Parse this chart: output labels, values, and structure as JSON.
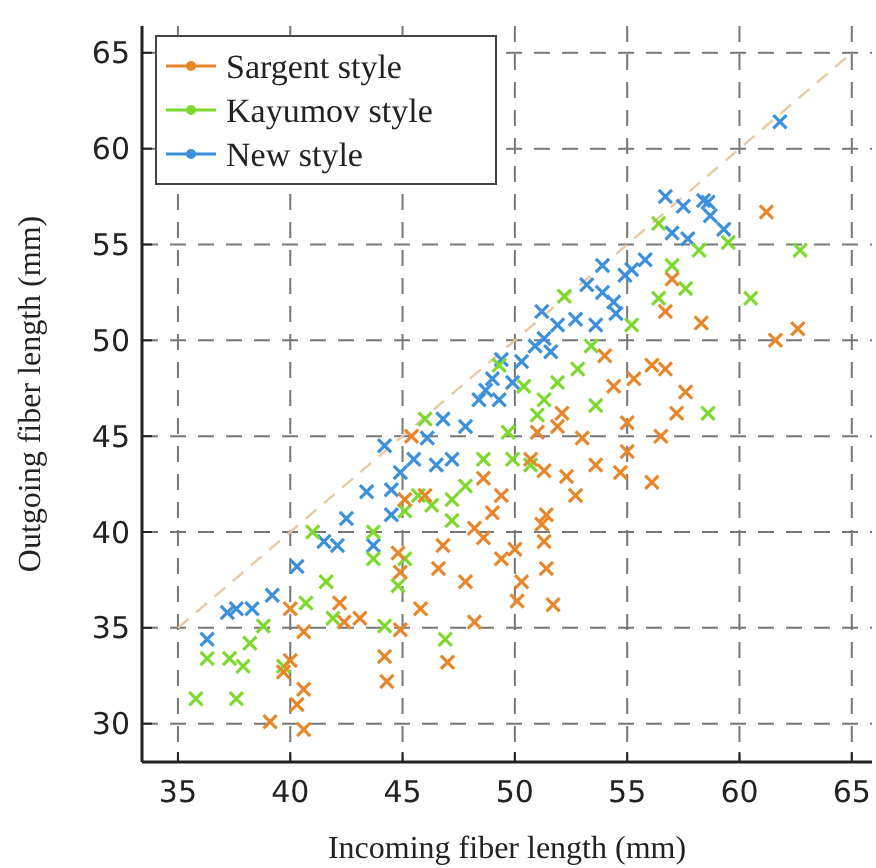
{
  "chart_data": {
    "type": "scatter",
    "xlabel": "Incoming fiber length (mm)",
    "ylabel": "Outgoing fiber length (mm)",
    "xlim": [
      33.4,
      65.9
    ],
    "ylim": [
      28,
      66.4
    ],
    "xticks": [
      35,
      40,
      45,
      50,
      55,
      60,
      65
    ],
    "yticks": [
      30,
      35,
      40,
      45,
      50,
      55,
      60,
      65
    ],
    "grid": true,
    "legend": "top left",
    "marker": "cross",
    "series": [
      {
        "name": "Sargent style",
        "color": "#e8862a",
        "x": [
          61.2,
          62.6,
          61.6,
          58.3,
          56.7,
          57.0,
          56.1,
          56.7,
          57.6,
          57.2,
          56.5,
          56.1,
          55.0,
          55.0,
          54.7,
          55.3,
          54.0,
          54.4,
          53.6,
          53.0,
          52.1,
          52.7,
          51.9,
          52.3,
          51.3,
          51.0,
          50.7,
          51.4,
          51.2,
          51.3,
          51.4,
          51.7,
          50.3,
          50.0,
          50.1,
          49.4,
          49.0,
          48.6,
          48.2,
          48.6,
          49.4,
          47.8,
          48.2,
          46.8,
          46.6,
          46.0,
          45.1,
          45.4,
          44.8,
          44.9,
          44.9,
          45.8,
          44.2,
          44.3,
          47.0,
          43.1,
          42.2,
          40.6,
          40.0,
          39.7,
          40.0,
          40.6,
          40.3,
          39.1,
          40.6,
          42.4
        ],
        "values": [
          56.7,
          50.6,
          50.0,
          50.9,
          51.5,
          53.2,
          48.7,
          48.5,
          47.3,
          46.2,
          45.0,
          42.6,
          45.7,
          44.2,
          43.1,
          48.0,
          49.2,
          47.6,
          43.5,
          44.9,
          46.2,
          41.9,
          45.5,
          42.9,
          43.2,
          45.2,
          43.8,
          40.9,
          40.4,
          39.5,
          38.1,
          36.2,
          37.4,
          39.1,
          36.4,
          41.9,
          41.0,
          42.8,
          40.2,
          39.7,
          38.6,
          37.4,
          35.3,
          39.3,
          38.1,
          41.9,
          41.7,
          45.0,
          38.9,
          37.9,
          34.9,
          36.0,
          33.5,
          32.2,
          33.2,
          35.5,
          36.3,
          34.8,
          36.0,
          32.7,
          33.3,
          31.8,
          31.0,
          30.1,
          29.7,
          35.3
        ]
      },
      {
        "name": "Kayumov style",
        "color": "#7ed92f",
        "x": [
          62.7,
          60.5,
          59.5,
          58.2,
          56.4,
          57.0,
          57.6,
          58.6,
          56.4,
          55.2,
          53.4,
          52.2,
          52.8,
          51.9,
          53.6,
          51.0,
          50.4,
          49.7,
          49.9,
          50.7,
          48.6,
          47.8,
          47.2,
          46.3,
          45.7,
          46.0,
          45.1,
          43.7,
          43.7,
          45.1,
          44.8,
          44.2,
          46.9,
          41.6,
          41.9,
          40.7,
          41.0,
          38.8,
          38.2,
          37.9,
          37.3,
          36.3,
          37.6,
          35.8,
          39.7,
          49.3,
          51.3,
          47.2
        ],
        "values": [
          54.7,
          52.2,
          55.1,
          54.7,
          56.1,
          53.9,
          52.7,
          46.2,
          52.2,
          50.8,
          49.7,
          52.3,
          48.5,
          47.8,
          46.6,
          46.1,
          47.6,
          45.2,
          43.8,
          43.5,
          43.8,
          42.4,
          41.7,
          41.4,
          41.9,
          45.9,
          41.1,
          40.0,
          38.6,
          38.6,
          37.2,
          35.1,
          34.4,
          37.4,
          35.5,
          36.3,
          40.0,
          35.1,
          34.2,
          33.0,
          33.4,
          33.4,
          31.3,
          31.3,
          33.0,
          48.7,
          46.9,
          40.6
        ]
      },
      {
        "name": "New style",
        "color": "#3b8fdb",
        "x": [
          61.8,
          56.7,
          57.5,
          58.4,
          58.6,
          58.7,
          59.3,
          57.0,
          57.7,
          55.8,
          55.2,
          54.9,
          53.9,
          53.2,
          53.9,
          54.4,
          52.7,
          51.9,
          51.2,
          51.3,
          50.9,
          51.6,
          50.3,
          49.4,
          49.0,
          48.4,
          48.7,
          47.8,
          46.8,
          46.1,
          45.5,
          44.9,
          44.2,
          44.5,
          43.4,
          44.5,
          42.5,
          42.1,
          41.5,
          40.3,
          39.2,
          38.3,
          37.6,
          37.2,
          36.3,
          49.9,
          47.2,
          46.5,
          49.3,
          53.6,
          54.5,
          43.7
        ],
        "values": [
          61.4,
          57.5,
          57.0,
          57.3,
          57.2,
          56.5,
          55.8,
          55.6,
          55.3,
          54.2,
          53.7,
          53.4,
          53.9,
          52.9,
          52.5,
          52.0,
          51.1,
          50.8,
          51.5,
          50.1,
          49.7,
          49.4,
          48.9,
          49.0,
          48.0,
          46.9,
          47.4,
          45.5,
          45.9,
          44.9,
          43.8,
          43.1,
          44.5,
          42.2,
          42.1,
          40.9,
          40.7,
          39.3,
          39.5,
          38.2,
          36.7,
          36.0,
          36.0,
          35.8,
          34.4,
          47.8,
          43.8,
          43.5,
          46.9,
          50.8,
          51.4,
          39.3
        ]
      },
      {
        "type": "line",
        "color": "#e8c9a0",
        "line_style": "dashed",
        "marker": "none",
        "x": [
          35,
          65
        ],
        "values": [
          35,
          65
        ]
      }
    ]
  }
}
